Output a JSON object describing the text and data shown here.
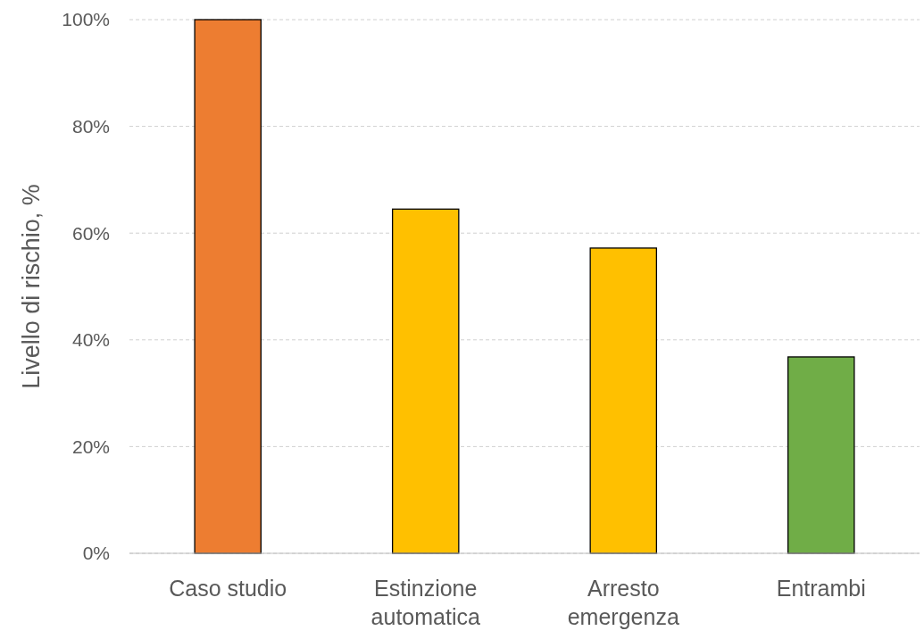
{
  "chart_data": {
    "type": "bar",
    "ylabel": "Livello di rischio, %",
    "categories": [
      "Caso studio",
      "Estinzione automatica",
      "Arresto emergenza",
      "Entrambi"
    ],
    "values": [
      100,
      64.5,
      57.2,
      36.8
    ],
    "colors": [
      "#ed7d31",
      "#ffc000",
      "#ffc000",
      "#70ad47"
    ],
    "ylim": [
      0,
      100
    ],
    "yticks": [
      {
        "value": 0,
        "label": "0%"
      },
      {
        "value": 20,
        "label": "20%"
      },
      {
        "value": 40,
        "label": "40%"
      },
      {
        "value": 60,
        "label": "60%"
      },
      {
        "value": 80,
        "label": "80%"
      },
      {
        "value": 100,
        "label": "100%"
      }
    ],
    "grid": "y"
  }
}
